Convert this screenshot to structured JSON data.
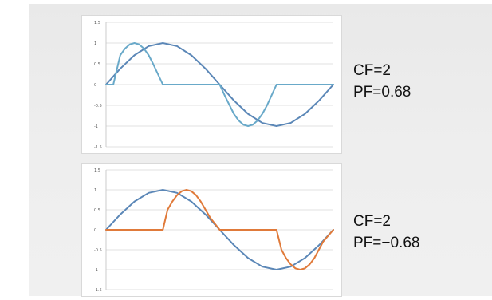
{
  "chart_data": [
    {
      "type": "line",
      "ylim": [
        -1.5,
        1.5
      ],
      "x_range": [
        0,
        6.2832
      ],
      "yticks": [
        "1.5",
        "1",
        "0.5",
        "0",
        "-0.5",
        "-1",
        "-1.5"
      ],
      "grid": true,
      "series": [
        {
          "color": "#5b87b7",
          "x": [
            0,
            0.3927,
            0.7854,
            1.1781,
            1.5708,
            1.9635,
            2.3562,
            2.7489,
            3.1416,
            3.5343,
            3.927,
            4.3197,
            4.7124,
            5.1051,
            5.4978,
            5.8905,
            6.2832
          ],
          "y": [
            0,
            0.383,
            0.707,
            0.924,
            1,
            0.924,
            0.707,
            0.383,
            0,
            -0.383,
            -0.707,
            -0.924,
            -1,
            -0.924,
            -0.707,
            -0.383,
            0
          ]
        },
        {
          "color": "#69a9c9",
          "x": [
            0,
            0.2,
            0.3927,
            0.5236,
            0.6545,
            0.7854,
            0.9163,
            1.0472,
            1.1781,
            1.3,
            1.5708,
            1.7,
            3.1416,
            3.3,
            3.5343,
            3.6652,
            3.7961,
            3.927,
            4.0579,
            4.1888,
            4.3197,
            4.45,
            4.7124,
            6.2832
          ],
          "y": [
            0,
            0,
            0.707,
            0.866,
            0.966,
            1,
            0.966,
            0.866,
            0.707,
            0.5,
            0,
            0,
            0,
            -0.3,
            -0.707,
            -0.866,
            -0.966,
            -1,
            -0.966,
            -0.866,
            -0.707,
            -0.5,
            0,
            0
          ]
        }
      ],
      "annotations": [
        "CF=2",
        "PF=0.68"
      ]
    },
    {
      "type": "line",
      "ylim": [
        -1.5,
        1.5
      ],
      "x_range": [
        0,
        6.2832
      ],
      "yticks": [
        "1.5",
        "1",
        "0.5",
        "0",
        "-0.5",
        "-1",
        "-1.5"
      ],
      "grid": true,
      "series": [
        {
          "color": "#5b87b7",
          "x": [
            0,
            0.3927,
            0.7854,
            1.1781,
            1.5708,
            1.9635,
            2.3562,
            2.7489,
            3.1416,
            3.5343,
            3.927,
            4.3197,
            4.7124,
            5.1051,
            5.4978,
            5.8905,
            6.2832
          ],
          "y": [
            0,
            0.383,
            0.707,
            0.924,
            1,
            0.924,
            0.707,
            0.383,
            0,
            -0.383,
            -0.707,
            -0.924,
            -1,
            -0.924,
            -0.707,
            -0.383,
            0
          ]
        },
        {
          "color": "#e07a3a",
          "x": [
            0,
            1.3,
            1.5708,
            1.7,
            1.8326,
            1.9635,
            2.0944,
            2.2253,
            2.3562,
            2.4871,
            2.618,
            2.88,
            3.1416,
            4.5,
            4.7124,
            4.85,
            4.9742,
            5.1051,
            5.236,
            5.3669,
            5.4978,
            5.6287,
            5.7596,
            6.0,
            6.2832
          ],
          "y": [
            0,
            0,
            0,
            0.5,
            0.707,
            0.866,
            0.966,
            1,
            0.966,
            0.866,
            0.707,
            0.3,
            0,
            0,
            0,
            -0.5,
            -0.707,
            -0.866,
            -0.966,
            -1,
            -0.966,
            -0.866,
            -0.707,
            -0.3,
            0
          ]
        }
      ],
      "annotations": [
        "CF=2",
        "PF=−0.68"
      ]
    }
  ]
}
